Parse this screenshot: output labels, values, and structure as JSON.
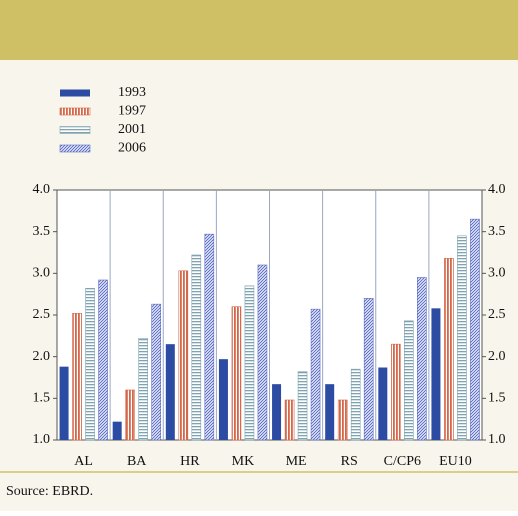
{
  "chart_data": {
    "type": "bar",
    "source": "Source: EBRD.",
    "categories": [
      "AL",
      "BA",
      "HR",
      "MK",
      "ME",
      "RS",
      "C/CP6",
      "EU10"
    ],
    "series": [
      {
        "name": "1993",
        "color": "#2c4ba3",
        "pattern": "solid",
        "values": [
          1.88,
          1.22,
          2.15,
          1.97,
          1.67,
          1.67,
          1.87,
          2.58
        ]
      },
      {
        "name": "1997",
        "color": "#d4674a",
        "pattern": "vertical",
        "values": [
          2.52,
          1.6,
          3.03,
          2.6,
          1.48,
          1.48,
          2.15,
          3.18
        ]
      },
      {
        "name": "2001",
        "color": "#7fa3b0",
        "pattern": "horizontal",
        "values": [
          2.82,
          2.22,
          3.22,
          2.85,
          1.82,
          1.85,
          2.43,
          3.45
        ]
      },
      {
        "name": "2006",
        "color": "#5a6cc4",
        "pattern": "diagonal",
        "values": [
          2.92,
          2.63,
          3.47,
          3.1,
          2.57,
          2.7,
          2.95,
          3.65
        ]
      }
    ],
    "ylim": [
      1,
      4
    ],
    "yticks": [
      {
        "value": 1,
        "label": "1.0"
      },
      {
        "value": 1.5,
        "label": "1.5"
      },
      {
        "value": 2,
        "label": "2.0"
      },
      {
        "value": 2.5,
        "label": "2.5"
      },
      {
        "value": 3,
        "label": "3.0"
      },
      {
        "value": 3.5,
        "label": "3.5"
      },
      {
        "value": 4,
        "label": "4.0"
      }
    ],
    "y2lim": [
      1,
      4
    ],
    "y2ticks": [
      {
        "value": 1,
        "label": "1.0"
      },
      {
        "value": 1.5,
        "label": "1.5"
      },
      {
        "value": 2,
        "label": "2.0"
      },
      {
        "value": 2.5,
        "label": "2.5"
      },
      {
        "value": 3,
        "label": "3.0"
      },
      {
        "value": 3.5,
        "label": "3.5"
      },
      {
        "value": 4,
        "label": "4.0"
      }
    ],
    "legend": "top-left"
  }
}
